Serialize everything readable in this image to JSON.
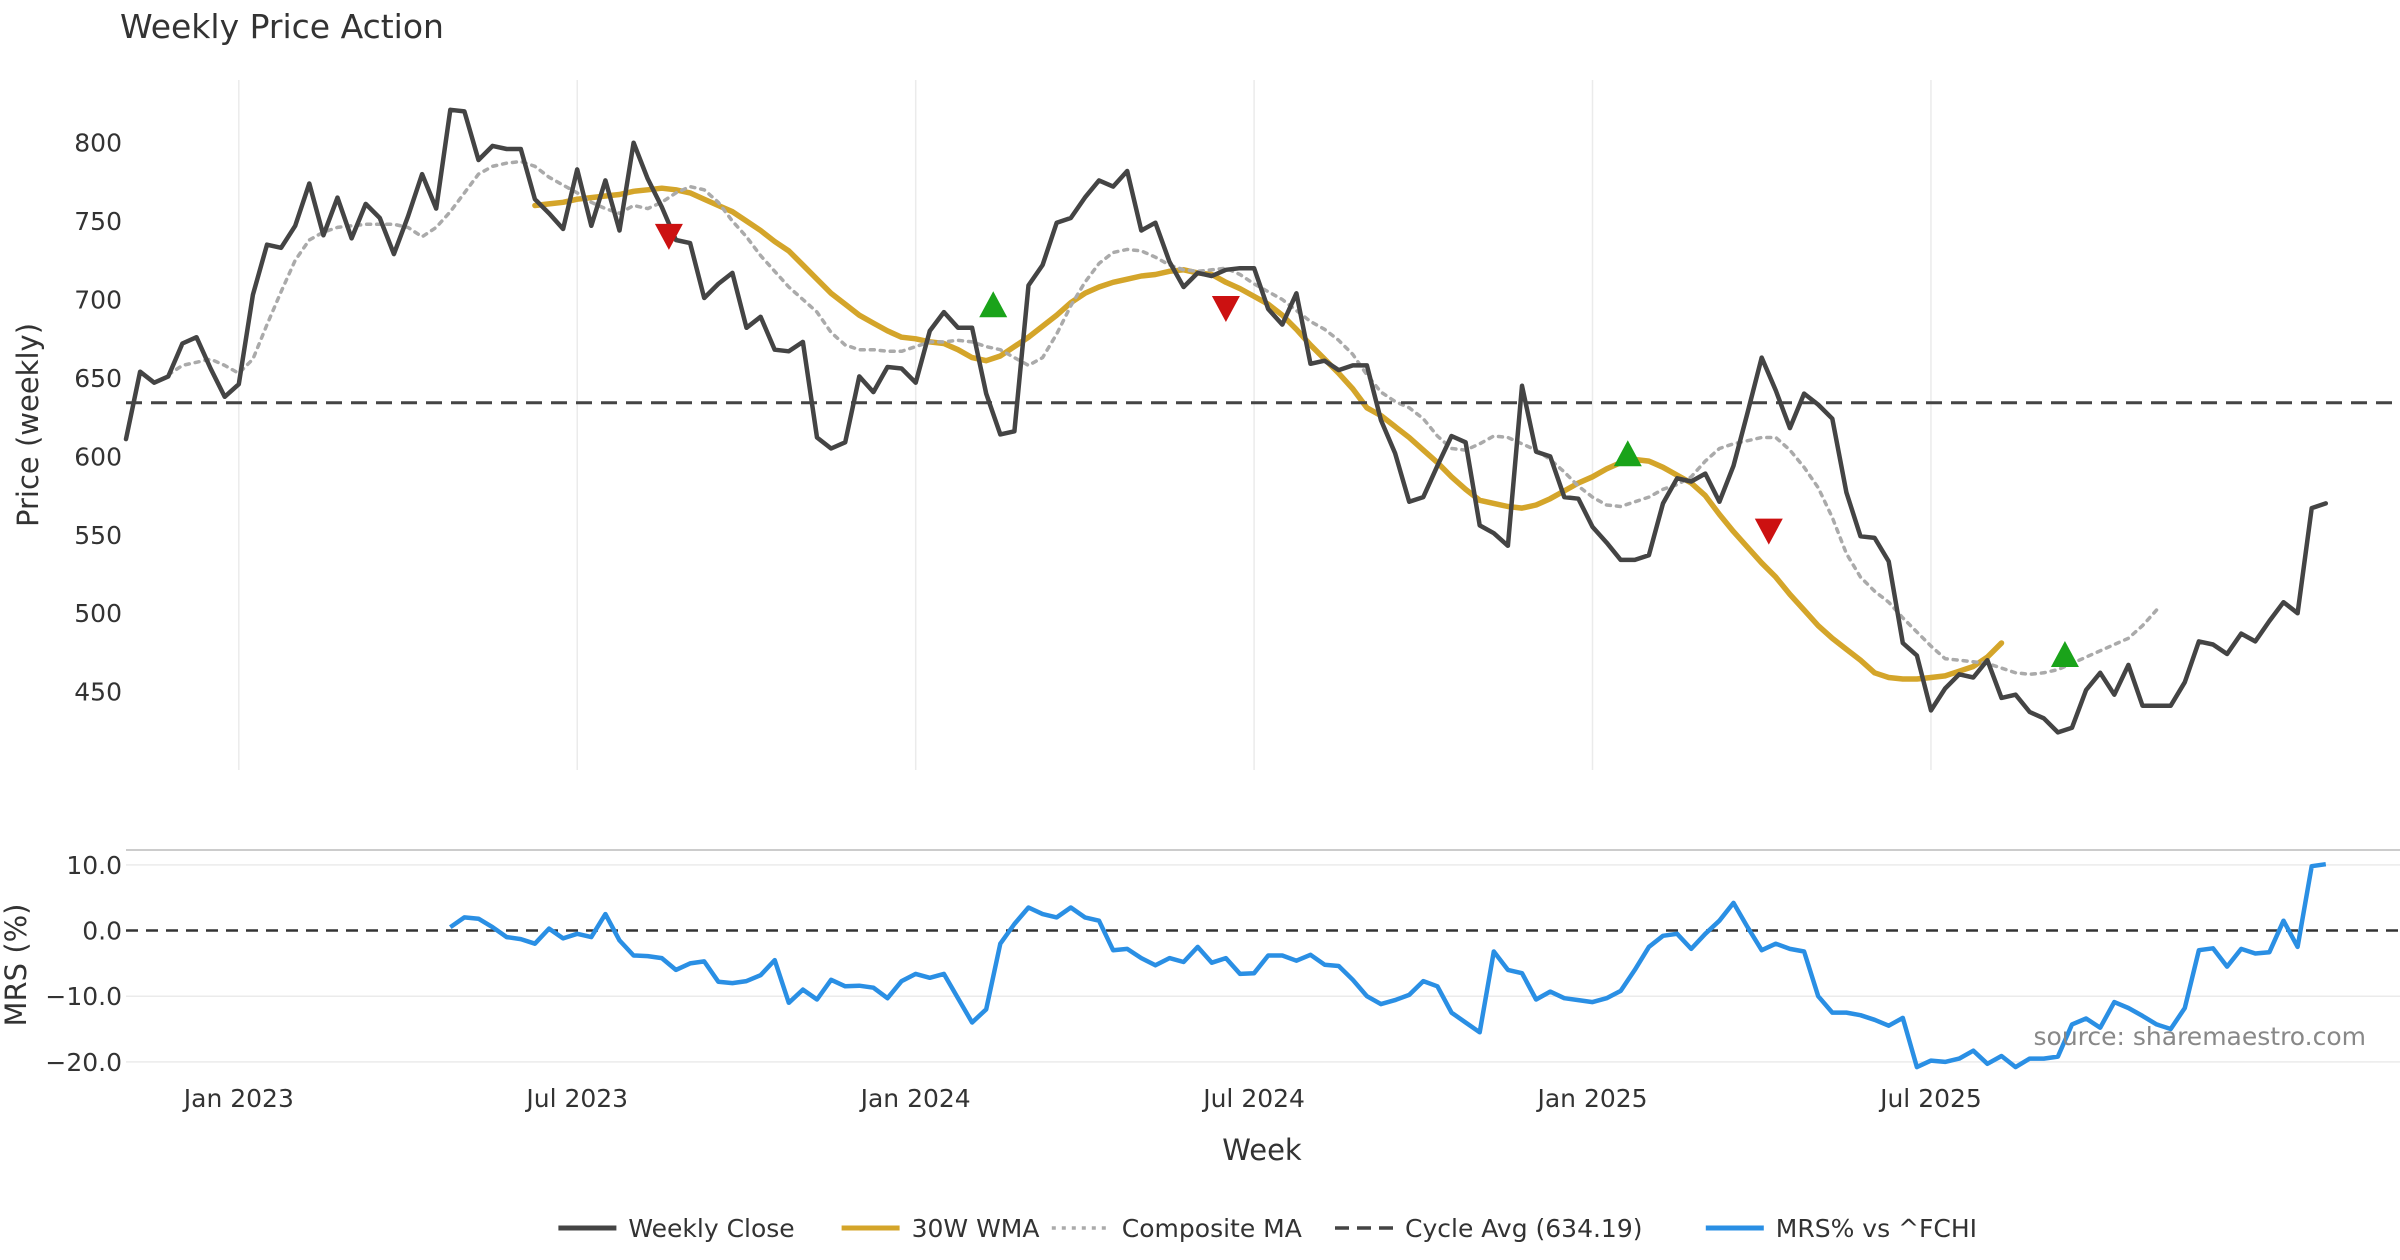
{
  "chart_data": [
    {
      "type": "line",
      "panel": "price",
      "title": "Weekly Price Action",
      "xlabel": "",
      "ylabel": "Price (weekly)",
      "ylim": [
        400,
        840
      ],
      "y_ticks": [
        450,
        500,
        550,
        600,
        650,
        700,
        750,
        800
      ],
      "x_range_weeks": [
        0,
        158
      ],
      "grid": "vertical",
      "series": [
        {
          "name": "Weekly Close",
          "color": "#444444",
          "start_week": 0,
          "values": [
            611,
            654,
            647,
            651,
            672,
            676,
            656,
            638,
            646,
            703,
            735,
            733,
            747,
            774,
            741,
            765,
            739,
            761,
            752,
            729,
            753,
            780,
            758,
            821,
            820,
            789,
            798,
            796,
            796,
            764,
            755,
            745,
            783,
            747,
            776,
            744,
            800,
            777,
            759,
            738,
            736,
            701,
            710,
            717,
            682,
            689,
            668,
            667,
            673,
            612,
            605,
            609,
            651,
            641,
            657,
            656,
            647,
            680,
            692,
            682,
            682,
            640,
            614,
            616,
            709,
            722,
            749,
            752,
            765,
            776,
            772,
            782,
            744,
            749,
            724,
            708,
            717,
            715,
            719,
            720,
            720,
            694,
            684,
            704,
            659,
            661,
            655,
            658,
            658,
            623,
            602,
            571,
            574,
            594,
            613,
            609,
            556,
            551,
            543,
            645,
            603,
            600,
            574,
            573,
            555,
            545,
            534,
            534,
            537,
            570,
            586,
            584,
            589,
            571,
            594,
            628,
            663,
            642,
            618,
            640,
            633,
            624,
            577,
            549,
            548,
            533,
            481,
            473,
            438,
            452,
            461,
            459,
            470,
            446,
            448,
            437,
            433,
            424,
            427,
            451,
            462,
            448,
            467,
            441,
            441,
            441,
            456,
            482,
            480,
            474,
            487,
            482,
            495,
            507,
            500,
            567,
            570
          ]
        },
        {
          "name": "30W WMA",
          "color": "#D4A52A",
          "start_week": 29,
          "values": [
            760,
            761,
            762,
            764,
            765,
            766,
            767,
            769,
            770,
            771,
            770,
            768,
            764,
            760,
            756,
            750,
            744,
            737,
            731,
            722,
            713,
            704,
            697,
            690,
            685,
            680,
            676,
            675,
            673,
            672,
            668,
            663,
            661,
            664,
            670,
            676,
            683,
            690,
            698,
            704,
            708,
            711,
            713,
            715,
            716,
            718,
            719,
            717,
            716,
            711,
            707,
            702,
            697,
            690,
            681,
            671,
            662,
            653,
            643,
            631,
            626,
            619,
            612,
            604,
            596,
            587,
            579,
            572,
            570,
            568,
            567,
            569,
            573,
            578,
            583,
            587,
            592,
            596,
            598,
            597,
            593,
            588,
            583,
            575,
            563,
            552,
            542,
            532,
            523,
            512,
            502,
            492,
            484,
            477,
            470,
            462,
            459,
            458,
            458,
            459,
            460,
            463,
            466,
            472,
            481
          ]
        },
        {
          "name": "Composite MA",
          "color": "#AAAAAA",
          "start_week": 3,
          "values": [
            652,
            658,
            660,
            662,
            658,
            653,
            662,
            684,
            705,
            725,
            738,
            743,
            746,
            747,
            748,
            748,
            748,
            746,
            740,
            746,
            756,
            768,
            780,
            785,
            787,
            788,
            785,
            778,
            773,
            768,
            762,
            758,
            755,
            760,
            758,
            762,
            768,
            772,
            770,
            762,
            750,
            740,
            728,
            718,
            708,
            700,
            692,
            679,
            671,
            668,
            668,
            667,
            667,
            670,
            673,
            673,
            674,
            673,
            670,
            668,
            663,
            658,
            663,
            678,
            696,
            711,
            723,
            730,
            732,
            731,
            727,
            722,
            719,
            718,
            719,
            720,
            716,
            710,
            705,
            700,
            693,
            686,
            681,
            674,
            665,
            652,
            641,
            635,
            631,
            624,
            613,
            605,
            604,
            608,
            613,
            612,
            608,
            604,
            598,
            590,
            581,
            574,
            569,
            568,
            571,
            574,
            579,
            582,
            587,
            597,
            605,
            608,
            610,
            612,
            612,
            604,
            593,
            580,
            561,
            538,
            523,
            514,
            507,
            497,
            488,
            479,
            471,
            470,
            469,
            468,
            465,
            462,
            461,
            462,
            464,
            468,
            472,
            476,
            480,
            484,
            492,
            502
          ]
        },
        {
          "name": "Cycle Avg (634.19)",
          "color": "#444444",
          "dashed": true,
          "constant": 634.19
        }
      ],
      "markers": [
        {
          "type": "sell",
          "week": 38.5,
          "value": 740,
          "color": "#CC1111"
        },
        {
          "type": "buy",
          "week": 61.5,
          "value": 697,
          "color": "#1AA31A"
        },
        {
          "type": "sell",
          "week": 78,
          "value": 694,
          "color": "#CC1111"
        },
        {
          "type": "buy",
          "week": 106.5,
          "value": 602,
          "color": "#1AA31A"
        },
        {
          "type": "sell",
          "week": 116.5,
          "value": 552,
          "color": "#CC1111"
        },
        {
          "type": "buy",
          "week": 137.5,
          "value": 474,
          "color": "#1AA31A"
        }
      ]
    },
    {
      "type": "line",
      "panel": "mrs",
      "xlabel": "Week",
      "ylabel": "MRS (%)",
      "ylim": [
        -22,
        11.5
      ],
      "y_ticks": [
        -20,
        -10,
        0,
        10
      ],
      "y_tick_labels": [
        "−20.0",
        "−10.0",
        "0.0",
        "10.0"
      ],
      "x_ticks": [
        "Jan 2023",
        "Jul 2023",
        "Jan 2024",
        "Jul 2024",
        "Jan 2025",
        "Jul 2025"
      ],
      "x_tick_weeks": [
        8,
        32,
        56,
        80,
        104,
        128
      ],
      "zero_line": true,
      "series": [
        {
          "name": "MRS% vs ^FCHI",
          "color": "#2A8FE4",
          "start_week": 23,
          "values": [
            0.5,
            2.0,
            1.8,
            0.5,
            -1.0,
            -1.3,
            -2.0,
            0.3,
            -1.2,
            -0.5,
            -1.0,
            2.5,
            -1.5,
            -3.8,
            -3.9,
            -4.2,
            -6.0,
            -5.0,
            -4.7,
            -7.8,
            -8.0,
            -7.7,
            -6.8,
            -4.5,
            -11.0,
            -9.0,
            -10.5,
            -7.5,
            -8.5,
            -8.4,
            -8.7,
            -10.3,
            -7.7,
            -6.6,
            -7.2,
            -6.6,
            -10.3,
            -14.0,
            -12.0,
            -2.0,
            1.0,
            3.5,
            2.5,
            2.0,
            3.5,
            2.0,
            1.5,
            -3.0,
            -2.8,
            -4.2,
            -5.3,
            -4.2,
            -4.8,
            -2.5,
            -4.9,
            -4.2,
            -6.6,
            -6.5,
            -3.8,
            -3.8,
            -4.6,
            -3.7,
            -5.2,
            -5.4,
            -7.5,
            -10.0,
            -11.2,
            -10.6,
            -9.8,
            -7.7,
            -8.5,
            -12.5,
            -14.0,
            -15.5,
            -3.2,
            -6.0,
            -6.5,
            -10.5,
            -9.3,
            -10.3,
            -10.6,
            -10.9,
            -10.3,
            -9.2,
            -6.0,
            -2.5,
            -0.8,
            -0.5,
            -2.8,
            -0.5,
            1.5,
            4.2,
            0.5,
            -3.0,
            -2.0,
            -2.8,
            -3.2,
            -10.0,
            -12.5,
            -12.5,
            -12.9,
            -13.6,
            -14.5,
            -13.3,
            -20.8,
            -19.8,
            -20.0,
            -19.5,
            -18.3,
            -20.3,
            -19.1,
            -20.8,
            -19.5,
            -19.5,
            -19.2,
            -14.3,
            -13.4,
            -14.8,
            -10.9,
            -11.8,
            -13.0,
            -14.3,
            -15.0,
            -11.8,
            -3.0,
            -2.7,
            -5.5,
            -2.8,
            -3.5,
            -3.3,
            1.5,
            -2.5,
            9.8,
            10.1
          ]
        }
      ]
    }
  ],
  "annotation": {
    "source": "source: sharemaestro.com"
  },
  "legend": {
    "placement": "bottom-center",
    "items": [
      {
        "label": "Weekly Close",
        "color": "#444444",
        "style": "solid"
      },
      {
        "label": "30W WMA",
        "color": "#D4A52A",
        "style": "solid"
      },
      {
        "label": "Composite MA",
        "color": "#AAAAAA",
        "style": "dotted"
      },
      {
        "label": "Cycle Avg (634.19)",
        "color": "#444444",
        "style": "dashed"
      },
      {
        "label": "MRS% vs ^FCHI",
        "color": "#2A8FE4",
        "style": "solid"
      }
    ]
  }
}
